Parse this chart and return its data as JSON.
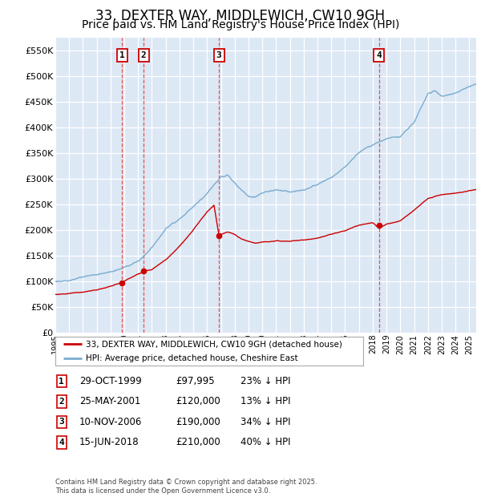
{
  "title": "33, DEXTER WAY, MIDDLEWICH, CW10 9GH",
  "subtitle": "Price paid vs. HM Land Registry's House Price Index (HPI)",
  "footer": "Contains HM Land Registry data © Crown copyright and database right 2025.\nThis data is licensed under the Open Government Licence v3.0.",
  "legend1": "33, DEXTER WAY, MIDDLEWICH, CW10 9GH (detached house)",
  "legend2": "HPI: Average price, detached house, Cheshire East",
  "transactions": [
    {
      "num": 1,
      "date": "29-OCT-1999",
      "price": 97995,
      "pct": "23%",
      "year": 1999.83
    },
    {
      "num": 2,
      "date": "25-MAY-2001",
      "price": 120000,
      "pct": "13%",
      "year": 2001.4
    },
    {
      "num": 3,
      "date": "10-NOV-2006",
      "price": 190000,
      "pct": "34%",
      "year": 2006.86
    },
    {
      "num": 4,
      "date": "15-JUN-2018",
      "price": 210000,
      "pct": "40%",
      "year": 2018.45
    }
  ],
  "xlim": [
    1995,
    2025.5
  ],
  "ylim": [
    0,
    575000
  ],
  "yticks": [
    0,
    50000,
    100000,
    150000,
    200000,
    250000,
    300000,
    350000,
    400000,
    450000,
    500000,
    550000
  ],
  "xticks": [
    1995,
    1996,
    1997,
    1998,
    1999,
    2000,
    2001,
    2002,
    2003,
    2004,
    2005,
    2006,
    2007,
    2008,
    2009,
    2010,
    2011,
    2012,
    2013,
    2014,
    2015,
    2016,
    2017,
    2018,
    2019,
    2020,
    2021,
    2022,
    2023,
    2024,
    2025
  ],
  "bg_color": "#dde8f5",
  "grid_color": "#ffffff",
  "red_line_color": "#cc0000",
  "blue_line_color": "#7aadcf",
  "vline_color": "#ee3333",
  "box_edge_color": "#cc0000",
  "title_fontsize": 12,
  "subtitle_fontsize": 10
}
